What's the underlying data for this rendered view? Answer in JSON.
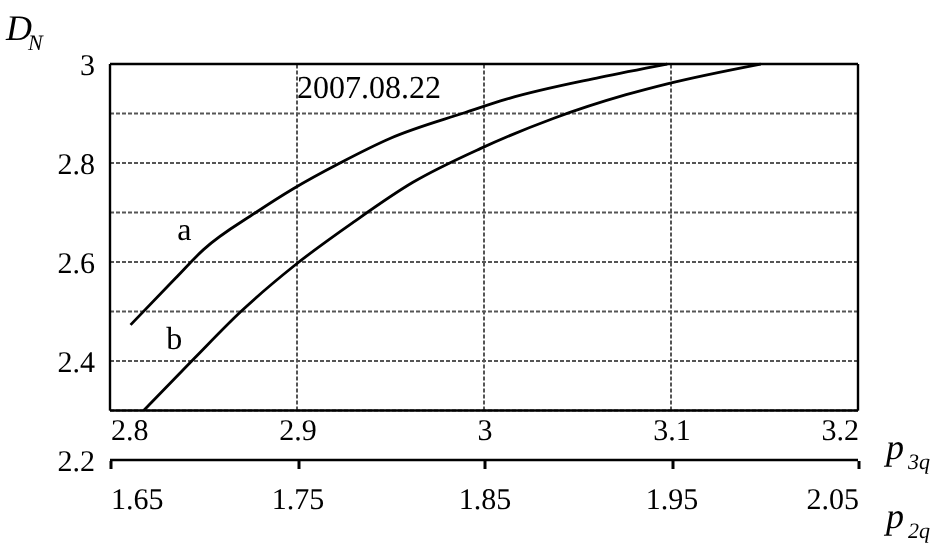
{
  "chart_data": {
    "type": "line",
    "xlabel": "p$_{3q}$",
    "x2label": "p$_{2q}$",
    "ylabel": "D$_{N}$",
    "annotations": [
      "2007.08.22"
    ],
    "series": [
      {
        "name": "a",
        "color": "#000000",
        "x": [
          2.811,
          2.835,
          2.85,
          2.878,
          2.898,
          2.923,
          2.95,
          2.99,
          3.012,
          3.062,
          3.098
        ],
        "values": [
          2.473,
          2.567,
          2.625,
          2.7,
          2.748,
          2.8,
          2.85,
          2.902,
          2.929,
          2.973,
          3.0
        ]
      },
      {
        "name": "b",
        "color": "#000000",
        "x": [
          2.818,
          2.845,
          2.87,
          2.899,
          2.93,
          2.962,
          2.998,
          3.037,
          3.076,
          3.098,
          3.148
        ],
        "values": [
          2.3,
          2.405,
          2.5,
          2.594,
          2.68,
          2.761,
          2.829,
          2.89,
          2.938,
          2.96,
          3.0
        ]
      }
    ],
    "xlim": [
      2.8,
      3.2
    ],
    "xticks": [
      2.8,
      2.9,
      3,
      3.1,
      3.2
    ],
    "x2lim": [
      1.65,
      2.05
    ],
    "x2ticks": [
      1.65,
      1.75,
      1.85,
      1.95,
      2.05
    ],
    "ylim": [
      2.2,
      3
    ],
    "yticks": [
      2.2,
      {
        "value": 2.3,
        "label": null
      },
      2.4,
      {
        "value": 2.5,
        "label": null
      },
      2.6,
      {
        "value": 2.7,
        "label": null
      },
      2.8,
      {
        "value": 2.9,
        "label": null
      },
      3
    ],
    "grid": true,
    "marker": "none",
    "line_style": "solid"
  }
}
